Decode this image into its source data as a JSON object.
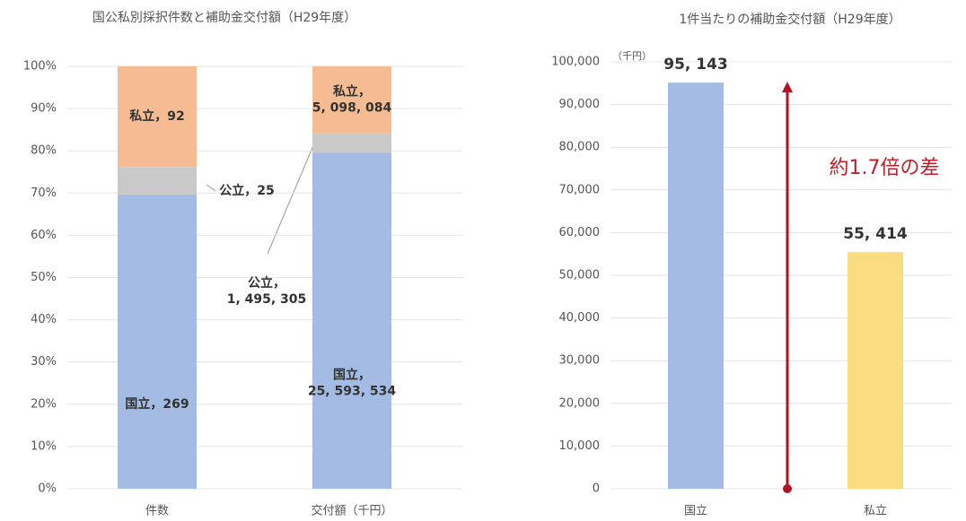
{
  "chart_data": [
    {
      "type": "bar",
      "stacking": "percent",
      "title": "国公私別採択件数と補助金交付額（H29年度）",
      "categories": [
        "件数",
        "交付額（千円）"
      ],
      "series": [
        {
          "name": "国立",
          "color": "#a4bbe3",
          "values": [
            269,
            25593534
          ],
          "value_labels": [
            "国立，269",
            "国立，\n25, 593, 534"
          ]
        },
        {
          "name": "公立",
          "color": "#c9c9c9",
          "values": [
            25,
            1495305
          ],
          "value_labels": [
            "公立，25",
            "公立，\n1, 495, 305"
          ]
        },
        {
          "name": "私立",
          "color": "#f5bc93",
          "values": [
            92,
            5098084
          ],
          "value_labels": [
            "私立，92",
            "私立，\n5, 098, 084"
          ]
        }
      ],
      "ylim": [
        0,
        100
      ],
      "yticks": [
        {
          "value": 0,
          "label": "0%"
        },
        {
          "value": 10,
          "label": "10%"
        },
        {
          "value": 20,
          "label": "20%"
        },
        {
          "value": 30,
          "label": "30%"
        },
        {
          "value": 40,
          "label": "40%"
        },
        {
          "value": 50,
          "label": "50%"
        },
        {
          "value": 60,
          "label": "60%"
        },
        {
          "value": 70,
          "label": "70%"
        },
        {
          "value": 80,
          "label": "80%"
        },
        {
          "value": 90,
          "label": "90%"
        },
        {
          "value": 100,
          "label": "100%"
        }
      ],
      "grid": true
    },
    {
      "type": "bar",
      "title": "1件当たりの補助金交付額（H29年度）",
      "unit_label": "（千円）",
      "categories": [
        "国立",
        "私立"
      ],
      "values": [
        95143,
        55414
      ],
      "value_labels": [
        "95, 143",
        "55, 414"
      ],
      "colors": [
        "#a4bbe3",
        "#f9dd80"
      ],
      "annotation": "約1.7倍の差",
      "ylim": [
        0,
        100000
      ],
      "yticks": [
        0,
        {
          "value": 10000,
          "label": "10,000"
        },
        {
          "value": 20000,
          "label": "20,000"
        },
        {
          "value": 30000,
          "label": "30,000"
        },
        {
          "value": 40000,
          "label": "40,000"
        },
        {
          "value": 50000,
          "label": "50,000"
        },
        {
          "value": 60000,
          "label": "60,000"
        },
        {
          "value": 70000,
          "label": "70,000"
        },
        {
          "value": 80000,
          "label": "80,000"
        },
        {
          "value": 90000,
          "label": "90,000"
        },
        {
          "value": 100000,
          "label": "100,000"
        }
      ],
      "grid": true
    }
  ]
}
